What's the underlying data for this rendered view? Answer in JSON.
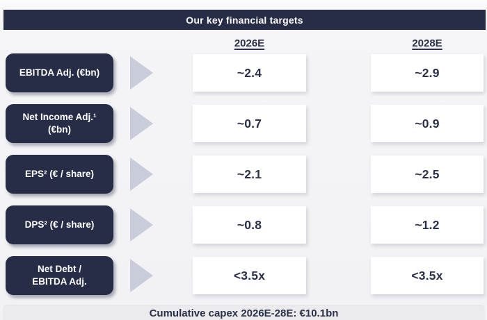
{
  "banner": {
    "title": "Our key financial targets"
  },
  "columns": [
    {
      "label": "2026E"
    },
    {
      "label": "2028E"
    }
  ],
  "rows": [
    {
      "label": "EBITDA Adj. (€bn)",
      "values": [
        "~2.4",
        "~2.9"
      ]
    },
    {
      "label": "Net Income Adj.¹\n(€bn)",
      "values": [
        "~0.7",
        "~0.9"
      ]
    },
    {
      "label": "EPS² (€ / share)",
      "values": [
        "~2.1",
        "~2.5"
      ]
    },
    {
      "label": "DPS² (€ / share)",
      "values": [
        "~0.8",
        "~1.2"
      ]
    },
    {
      "label": "Net Debt /\nEBITDA Adj.",
      "values": [
        "<3.5x",
        "<3.5x"
      ]
    }
  ],
  "footer": {
    "text": "Cumulative capex 2026E-28E: €10.1bn"
  },
  "icons": {
    "row_arrow": "right-triangle-icon"
  },
  "colors": {
    "navy": "#282d47",
    "arrow_gray": "#c8ccdb",
    "value_text": "#2b3048",
    "footer_bg": "#ebebee",
    "box_bg": "#ffffff"
  }
}
